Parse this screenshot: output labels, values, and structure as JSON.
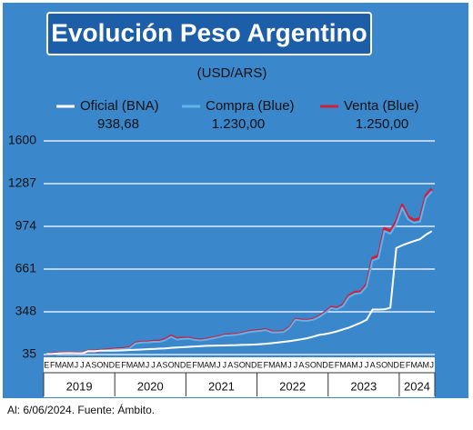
{
  "chart_data": {
    "type": "line",
    "title": "Evolución Peso Argentino",
    "subtitle": "(USD/ARS)",
    "footer": "Al: 6/06/2024. Fuente: Ámbito.",
    "categories": [
      "E",
      "F",
      "M",
      "A",
      "M",
      "J",
      "J",
      "A",
      "S",
      "O",
      "N",
      "D",
      "E",
      "F",
      "M",
      "A",
      "M",
      "J",
      "J",
      "A",
      "S",
      "O",
      "N",
      "D",
      "E",
      "F",
      "M",
      "A",
      "M",
      "J",
      "J",
      "A",
      "S",
      "O",
      "N",
      "D",
      "E",
      "F",
      "M",
      "A",
      "M",
      "J",
      "J",
      "A",
      "S",
      "O",
      "N",
      "D",
      "E",
      "F",
      "M",
      "A",
      "M",
      "J",
      "J",
      "A",
      "S",
      "O",
      "N",
      "D",
      "E",
      "F",
      "M",
      "A",
      "M",
      "J"
    ],
    "years": [
      "2019",
      "2020",
      "2021",
      "2022",
      "2023",
      "2024"
    ],
    "ylim": [
      35,
      1600
    ],
    "yticks": [
      35,
      348,
      661,
      974,
      1287,
      1600
    ],
    "grid": true,
    "series": [
      {
        "name": "Venta (Blue)",
        "color": "#d0203a",
        "values": [
          40,
          41,
          45,
          46,
          46,
          45,
          45,
          61,
          61,
          66,
          69,
          73,
          78,
          80,
          86,
          120,
          127,
          127,
          133,
          134,
          146,
          172,
          151,
          156,
          155,
          146,
          142,
          148,
          157,
          166,
          178,
          180,
          184,
          192,
          202,
          208,
          212,
          218,
          201,
          201,
          204,
          234,
          294,
          288,
          286,
          294,
          315,
          346,
          382,
          375,
          398,
          466,
          492,
          496,
          548,
          742,
          760,
          960,
          940,
          1010,
          1130,
          1045,
          1020,
          1030,
          1200,
          1250
        ],
        "value_labels": [
          null,
          null,
          null,
          null,
          null,
          null,
          null,
          null,
          null,
          null,
          null,
          null,
          null,
          null,
          null,
          null,
          null,
          null,
          null,
          null,
          null,
          null,
          null,
          null,
          null,
          null,
          null,
          null,
          null,
          null,
          null,
          null,
          null,
          null,
          null,
          null,
          null,
          null,
          null,
          null,
          null,
          null,
          null,
          null,
          null,
          null,
          null,
          null,
          null,
          null,
          null,
          null,
          null,
          null,
          null,
          null,
          null,
          null,
          null,
          null,
          null,
          null,
          null,
          null,
          null,
          "1.250,00"
        ]
      },
      {
        "name": "Compra (Blue)",
        "color": "#5fb4ee",
        "values": [
          38,
          39,
          43,
          44,
          44,
          43,
          43,
          58,
          58,
          63,
          66,
          70,
          74,
          76,
          82,
          116,
          123,
          123,
          128,
          128,
          140,
          165,
          145,
          150,
          151,
          142,
          138,
          144,
          153,
          162,
          174,
          176,
          180,
          188,
          198,
          204,
          208,
          214,
          197,
          197,
          200,
          230,
          290,
          284,
          282,
          290,
          310,
          340,
          375,
          368,
          390,
          456,
          480,
          485,
          535,
          725,
          740,
          940,
          920,
          990,
          1110,
          1025,
          1000,
          1010,
          1180,
          1230
        ],
        "value_labels": [
          null,
          null,
          null,
          null,
          null,
          null,
          null,
          null,
          null,
          null,
          null,
          null,
          null,
          null,
          null,
          null,
          null,
          null,
          null,
          null,
          null,
          null,
          null,
          null,
          null,
          null,
          null,
          null,
          null,
          null,
          null,
          null,
          null,
          null,
          null,
          null,
          null,
          null,
          null,
          null,
          null,
          null,
          null,
          null,
          null,
          null,
          null,
          null,
          null,
          null,
          null,
          null,
          null,
          null,
          null,
          null,
          null,
          null,
          null,
          null,
          null,
          null,
          null,
          null,
          null,
          "1.230,00"
        ]
      },
      {
        "name": "Oficial (BNA)",
        "color": "#ffffff",
        "values": [
          39,
          40,
          43,
          45,
          46,
          44,
          44,
          60,
          59,
          63,
          63,
          63,
          64,
          66,
          68,
          70,
          72,
          74,
          76,
          78,
          80,
          84,
          87,
          89,
          92,
          94,
          97,
          99,
          100,
          101,
          102,
          103,
          104,
          106,
          107,
          108,
          111,
          114,
          118,
          123,
          128,
          133,
          140,
          147,
          155,
          166,
          179,
          185,
          194,
          205,
          219,
          232,
          250,
          268,
          290,
          365,
          365,
          366,
          378,
          815,
          835,
          851,
          866,
          880,
          913,
          938.68
        ],
        "value_labels": [
          null,
          null,
          null,
          null,
          null,
          null,
          null,
          null,
          null,
          null,
          null,
          null,
          null,
          null,
          null,
          null,
          null,
          null,
          null,
          null,
          null,
          null,
          null,
          null,
          null,
          null,
          null,
          null,
          null,
          null,
          null,
          null,
          null,
          null,
          null,
          null,
          null,
          null,
          null,
          null,
          null,
          null,
          null,
          null,
          null,
          null,
          null,
          null,
          null,
          null,
          null,
          null,
          null,
          null,
          null,
          null,
          null,
          null,
          null,
          null,
          null,
          null,
          null,
          null,
          null,
          "938,68"
        ]
      }
    ]
  }
}
